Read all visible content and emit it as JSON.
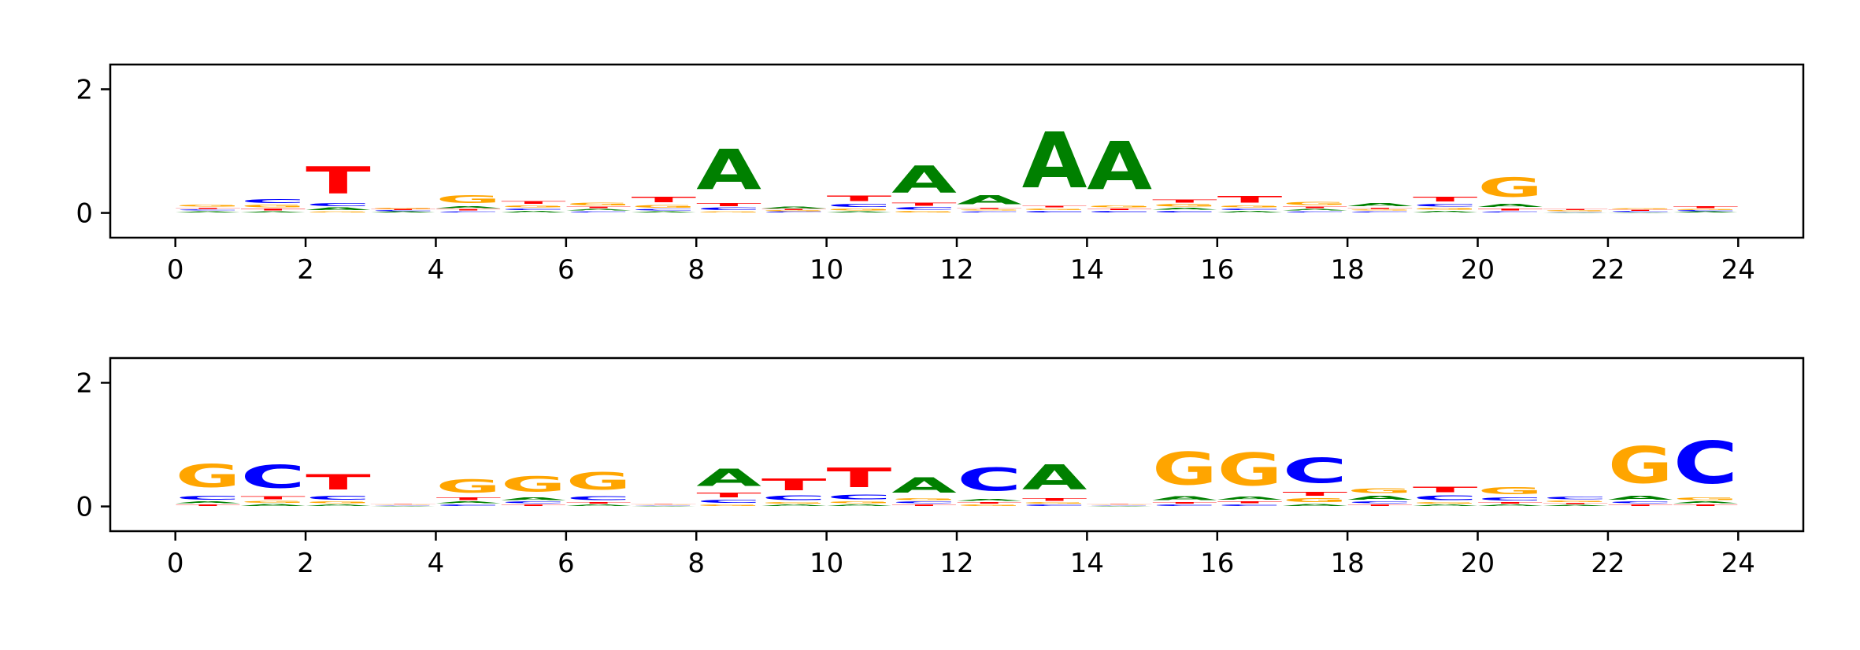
{
  "colors": {
    "A": "#008000",
    "C": "#0000ff",
    "G": "#ffa500",
    "T": "#ff0000"
  },
  "chart_data": [
    {
      "type": "sequence-logo",
      "x_ticks": [
        "0",
        "2",
        "4",
        "6",
        "8",
        "10",
        "12",
        "14",
        "16",
        "18",
        "20",
        "22",
        "24"
      ],
      "y_ticks": [
        "0",
        "2"
      ],
      "xlim": [
        -1,
        25
      ],
      "ylim": [
        -0.4,
        2.4
      ],
      "positions": [
        {
          "A": 0.03,
          "C": 0.03,
          "G": 0.05,
          "T": 0.03
        },
        {
          "A": 0.03,
          "C": 0.1,
          "G": 0.06,
          "T": 0.05
        },
        {
          "A": 0.06,
          "C": 0.08,
          "G": 0.03,
          "T": 0.7
        },
        {
          "A": 0.02,
          "C": 0.02,
          "G": 0.03,
          "T": 0.02
        },
        {
          "A": 0.05,
          "C": 0.03,
          "G": 0.2,
          "T": 0.04
        },
        {
          "A": 0.04,
          "C": 0.04,
          "G": 0.05,
          "T": 0.07
        },
        {
          "A": 0.04,
          "C": 0.03,
          "G": 0.06,
          "T": 0.04
        },
        {
          "A": 0.03,
          "C": 0.04,
          "G": 0.07,
          "T": 0.15
        },
        {
          "A": 1.05,
          "C": 0.06,
          "G": 0.03,
          "T": 0.08
        },
        {
          "A": 0.05,
          "C": 0.02,
          "G": 0.02,
          "T": 0.02
        },
        {
          "A": 0.03,
          "C": 0.08,
          "G": 0.05,
          "T": 0.14
        },
        {
          "A": 0.7,
          "C": 0.06,
          "G": 0.04,
          "T": 0.08
        },
        {
          "A": 0.24,
          "C": 0.03,
          "G": 0.03,
          "T": 0.03
        },
        {
          "A": 1.45,
          "C": 0.04,
          "G": 0.04,
          "T": 0.04
        },
        {
          "A": 1.25,
          "C": 0.04,
          "G": 0.05,
          "T": 0.04
        },
        {
          "A": 0.05,
          "C": 0.04,
          "G": 0.06,
          "T": 0.08
        },
        {
          "A": 0.04,
          "C": 0.04,
          "G": 0.05,
          "T": 0.17
        },
        {
          "A": 0.04,
          "C": 0.03,
          "G": 0.08,
          "T": 0.04
        },
        {
          "A": 0.08,
          "C": 0.03,
          "G": 0.03,
          "T": 0.03
        },
        {
          "A": 0.04,
          "C": 0.07,
          "G": 0.05,
          "T": 0.12
        },
        {
          "A": 0.08,
          "C": 0.03,
          "G": 0.5,
          "T": 0.05
        },
        {
          "A": 0.01,
          "C": 0.01,
          "G": 0.02,
          "T": 0.03
        },
        {
          "A": 0.01,
          "C": 0.02,
          "G": 0.03,
          "T": 0.02
        },
        {
          "A": 0.02,
          "C": 0.02,
          "G": 0.03,
          "T": 0.05
        }
      ]
    },
    {
      "type": "sequence-logo",
      "x_ticks": [
        "0",
        "2",
        "4",
        "6",
        "8",
        "10",
        "12",
        "14",
        "16",
        "18",
        "20",
        "22",
        "24"
      ],
      "y_ticks": [
        "0",
        "2"
      ],
      "xlim": [
        -1,
        25
      ],
      "ylim": [
        -0.4,
        2.4
      ],
      "positions": [
        {
          "A": 0.05,
          "C": 0.1,
          "G": 0.6,
          "T": 0.04
        },
        {
          "A": 0.05,
          "C": 0.6,
          "G": 0.05,
          "T": 0.08
        },
        {
          "A": 0.04,
          "C": 0.1,
          "G": 0.05,
          "T": 0.4
        },
        {
          "A": 0.01,
          "C": 0.01,
          "G": 0.01,
          "T": 0.01
        },
        {
          "A": 0.05,
          "C": 0.04,
          "G": 0.35,
          "T": 0.06
        },
        {
          "A": 0.07,
          "C": 0.05,
          "G": 0.4,
          "T": 0.04
        },
        {
          "A": 0.04,
          "C": 0.1,
          "G": 0.45,
          "T": 0.04
        },
        {
          "A": 0.01,
          "C": 0.01,
          "G": 0.01,
          "T": 0.01
        },
        {
          "A": 0.45,
          "C": 0.08,
          "G": 0.04,
          "T": 0.12
        },
        {
          "A": 0.04,
          "C": 0.12,
          "G": 0.04,
          "T": 0.3
        },
        {
          "A": 0.04,
          "C": 0.12,
          "G": 0.05,
          "T": 0.5
        },
        {
          "A": 0.4,
          "C": 0.05,
          "G": 0.05,
          "T": 0.04
        },
        {
          "A": 0.05,
          "C": 0.6,
          "G": 0.04,
          "T": 0.04
        },
        {
          "A": 0.65,
          "C": 0.04,
          "G": 0.04,
          "T": 0.06
        },
        {
          "A": 0.01,
          "C": 0.01,
          "G": 0.01,
          "T": 0.01
        },
        {
          "A": 0.1,
          "C": 0.04,
          "G": 0.85,
          "T": 0.04
        },
        {
          "A": 0.08,
          "C": 0.04,
          "G": 0.85,
          "T": 0.05
        },
        {
          "A": 0.05,
          "C": 0.65,
          "G": 0.1,
          "T": 0.1
        },
        {
          "A": 0.1,
          "C": 0.05,
          "G": 0.12,
          "T": 0.04
        },
        {
          "A": 0.04,
          "C": 0.12,
          "G": 0.04,
          "T": 0.15
        },
        {
          "A": 0.04,
          "C": 0.08,
          "G": 0.18,
          "T": 0.04
        },
        {
          "A": 0.03,
          "C": 0.06,
          "G": 0.04,
          "T": 0.03
        },
        {
          "A": 0.1,
          "C": 0.05,
          "G": 0.95,
          "T": 0.04
        },
        {
          "A": 0.05,
          "C": 1.1,
          "G": 0.06,
          "T": 0.04
        }
      ]
    }
  ]
}
